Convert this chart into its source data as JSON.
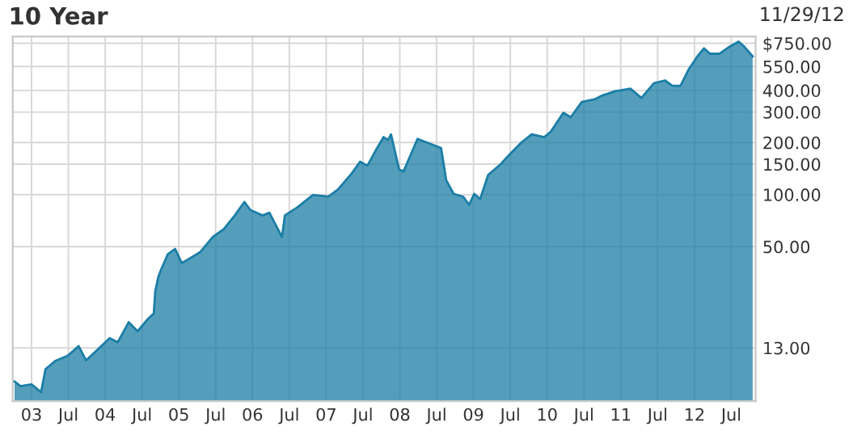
{
  "chart_data": {
    "type": "area",
    "title": "10 Year",
    "annotations": [
      "11/29/12"
    ],
    "x": [
      2002.77,
      2002.85,
      2003.0,
      2003.13,
      2003.19,
      2003.32,
      2003.49,
      2003.64,
      2003.74,
      2003.89,
      2004.06,
      2004.17,
      2004.32,
      2004.44,
      2004.59,
      2004.66,
      2004.68,
      2004.72,
      2004.76,
      2004.85,
      2004.95,
      2005.04,
      2005.17,
      2005.29,
      2005.46,
      2005.61,
      2005.76,
      2005.89,
      2005.97,
      2006.14,
      2006.23,
      2006.4,
      2006.44,
      2006.61,
      2006.82,
      2007.03,
      2007.16,
      2007.35,
      2007.46,
      2007.56,
      2007.67,
      2007.78,
      2007.84,
      2007.88,
      2007.99,
      2008.05,
      2008.14,
      2008.24,
      2008.41,
      2008.56,
      2008.63,
      2008.73,
      2008.86,
      2008.94,
      2009.01,
      2009.09,
      2009.2,
      2009.37,
      2009.48,
      2009.65,
      2009.79,
      2009.96,
      2010.05,
      2010.22,
      2010.32,
      2010.47,
      2010.64,
      2010.75,
      2010.92,
      2011.13,
      2011.28,
      2011.45,
      2011.6,
      2011.7,
      2011.81,
      2011.92,
      2012.04,
      2012.13,
      2012.21,
      2012.34,
      2012.47,
      2012.6,
      2012.68,
      2012.79
    ],
    "series": [
      {
        "color": "#1b7ea6",
        "values": [
          8.3,
          7.8,
          8.0,
          7.2,
          9.8,
          10.9,
          11.7,
          13.3,
          11.0,
          12.6,
          14.8,
          14.0,
          18.3,
          16.2,
          19.3,
          20.5,
          27.7,
          33.2,
          36.9,
          45.2,
          48.5,
          40.2,
          43.3,
          46.5,
          56.8,
          63.2,
          75.8,
          90.7,
          81.5,
          75.8,
          78.5,
          56.8,
          75.8,
          84.4,
          99.5,
          97.3,
          107,
          133,
          155,
          147,
          179,
          215,
          207,
          223,
          140,
          136,
          167,
          210,
          197,
          186,
          121,
          101,
          97.3,
          87.3,
          101,
          94.1,
          130,
          150,
          169,
          200,
          223,
          215,
          231,
          297,
          280,
          343,
          355,
          374,
          396,
          410,
          362,
          441,
          457,
          426,
          426,
          528,
          630,
          701,
          652,
          652,
          714,
          766,
          714,
          630
        ]
      }
    ],
    "log": "y",
    "ylim": [
      6.4,
      820
    ],
    "yticks": [
      {
        "value": 13,
        "label": "13.00"
      },
      {
        "value": 50,
        "label": "50.00"
      },
      {
        "value": 100,
        "label": "100.00"
      },
      {
        "value": 150,
        "label": "150.00"
      },
      {
        "value": 200,
        "label": "200.00"
      },
      {
        "value": 300,
        "label": "300.00"
      },
      {
        "value": 400,
        "label": "400.00"
      },
      {
        "value": 550,
        "label": "550.00"
      },
      {
        "value": 750,
        "label": "$750.00"
      }
    ],
    "xlim": [
      2002.745,
      2012.83
    ],
    "xticks": [
      {
        "value": 2003,
        "label": "03"
      },
      {
        "value": 2003.5,
        "label": "Jul"
      },
      {
        "value": 2004,
        "label": "04"
      },
      {
        "value": 2004.5,
        "label": "Jul"
      },
      {
        "value": 2005,
        "label": "05"
      },
      {
        "value": 2005.5,
        "label": "Jul"
      },
      {
        "value": 2006,
        "label": "06"
      },
      {
        "value": 2006.5,
        "label": "Jul"
      },
      {
        "value": 2007,
        "label": "07"
      },
      {
        "value": 2007.5,
        "label": "Jul"
      },
      {
        "value": 2008,
        "label": "08"
      },
      {
        "value": 2008.5,
        "label": "Jul"
      },
      {
        "value": 2009,
        "label": "09"
      },
      {
        "value": 2009.5,
        "label": "Jul"
      },
      {
        "value": 2010,
        "label": "10"
      },
      {
        "value": 2010.5,
        "label": "Jul"
      },
      {
        "value": 2011,
        "label": "11"
      },
      {
        "value": 2011.5,
        "label": "Jul"
      },
      {
        "value": 2012,
        "label": "12"
      },
      {
        "value": 2012.5,
        "label": "Jul"
      }
    ],
    "grid": true,
    "legend": false
  }
}
